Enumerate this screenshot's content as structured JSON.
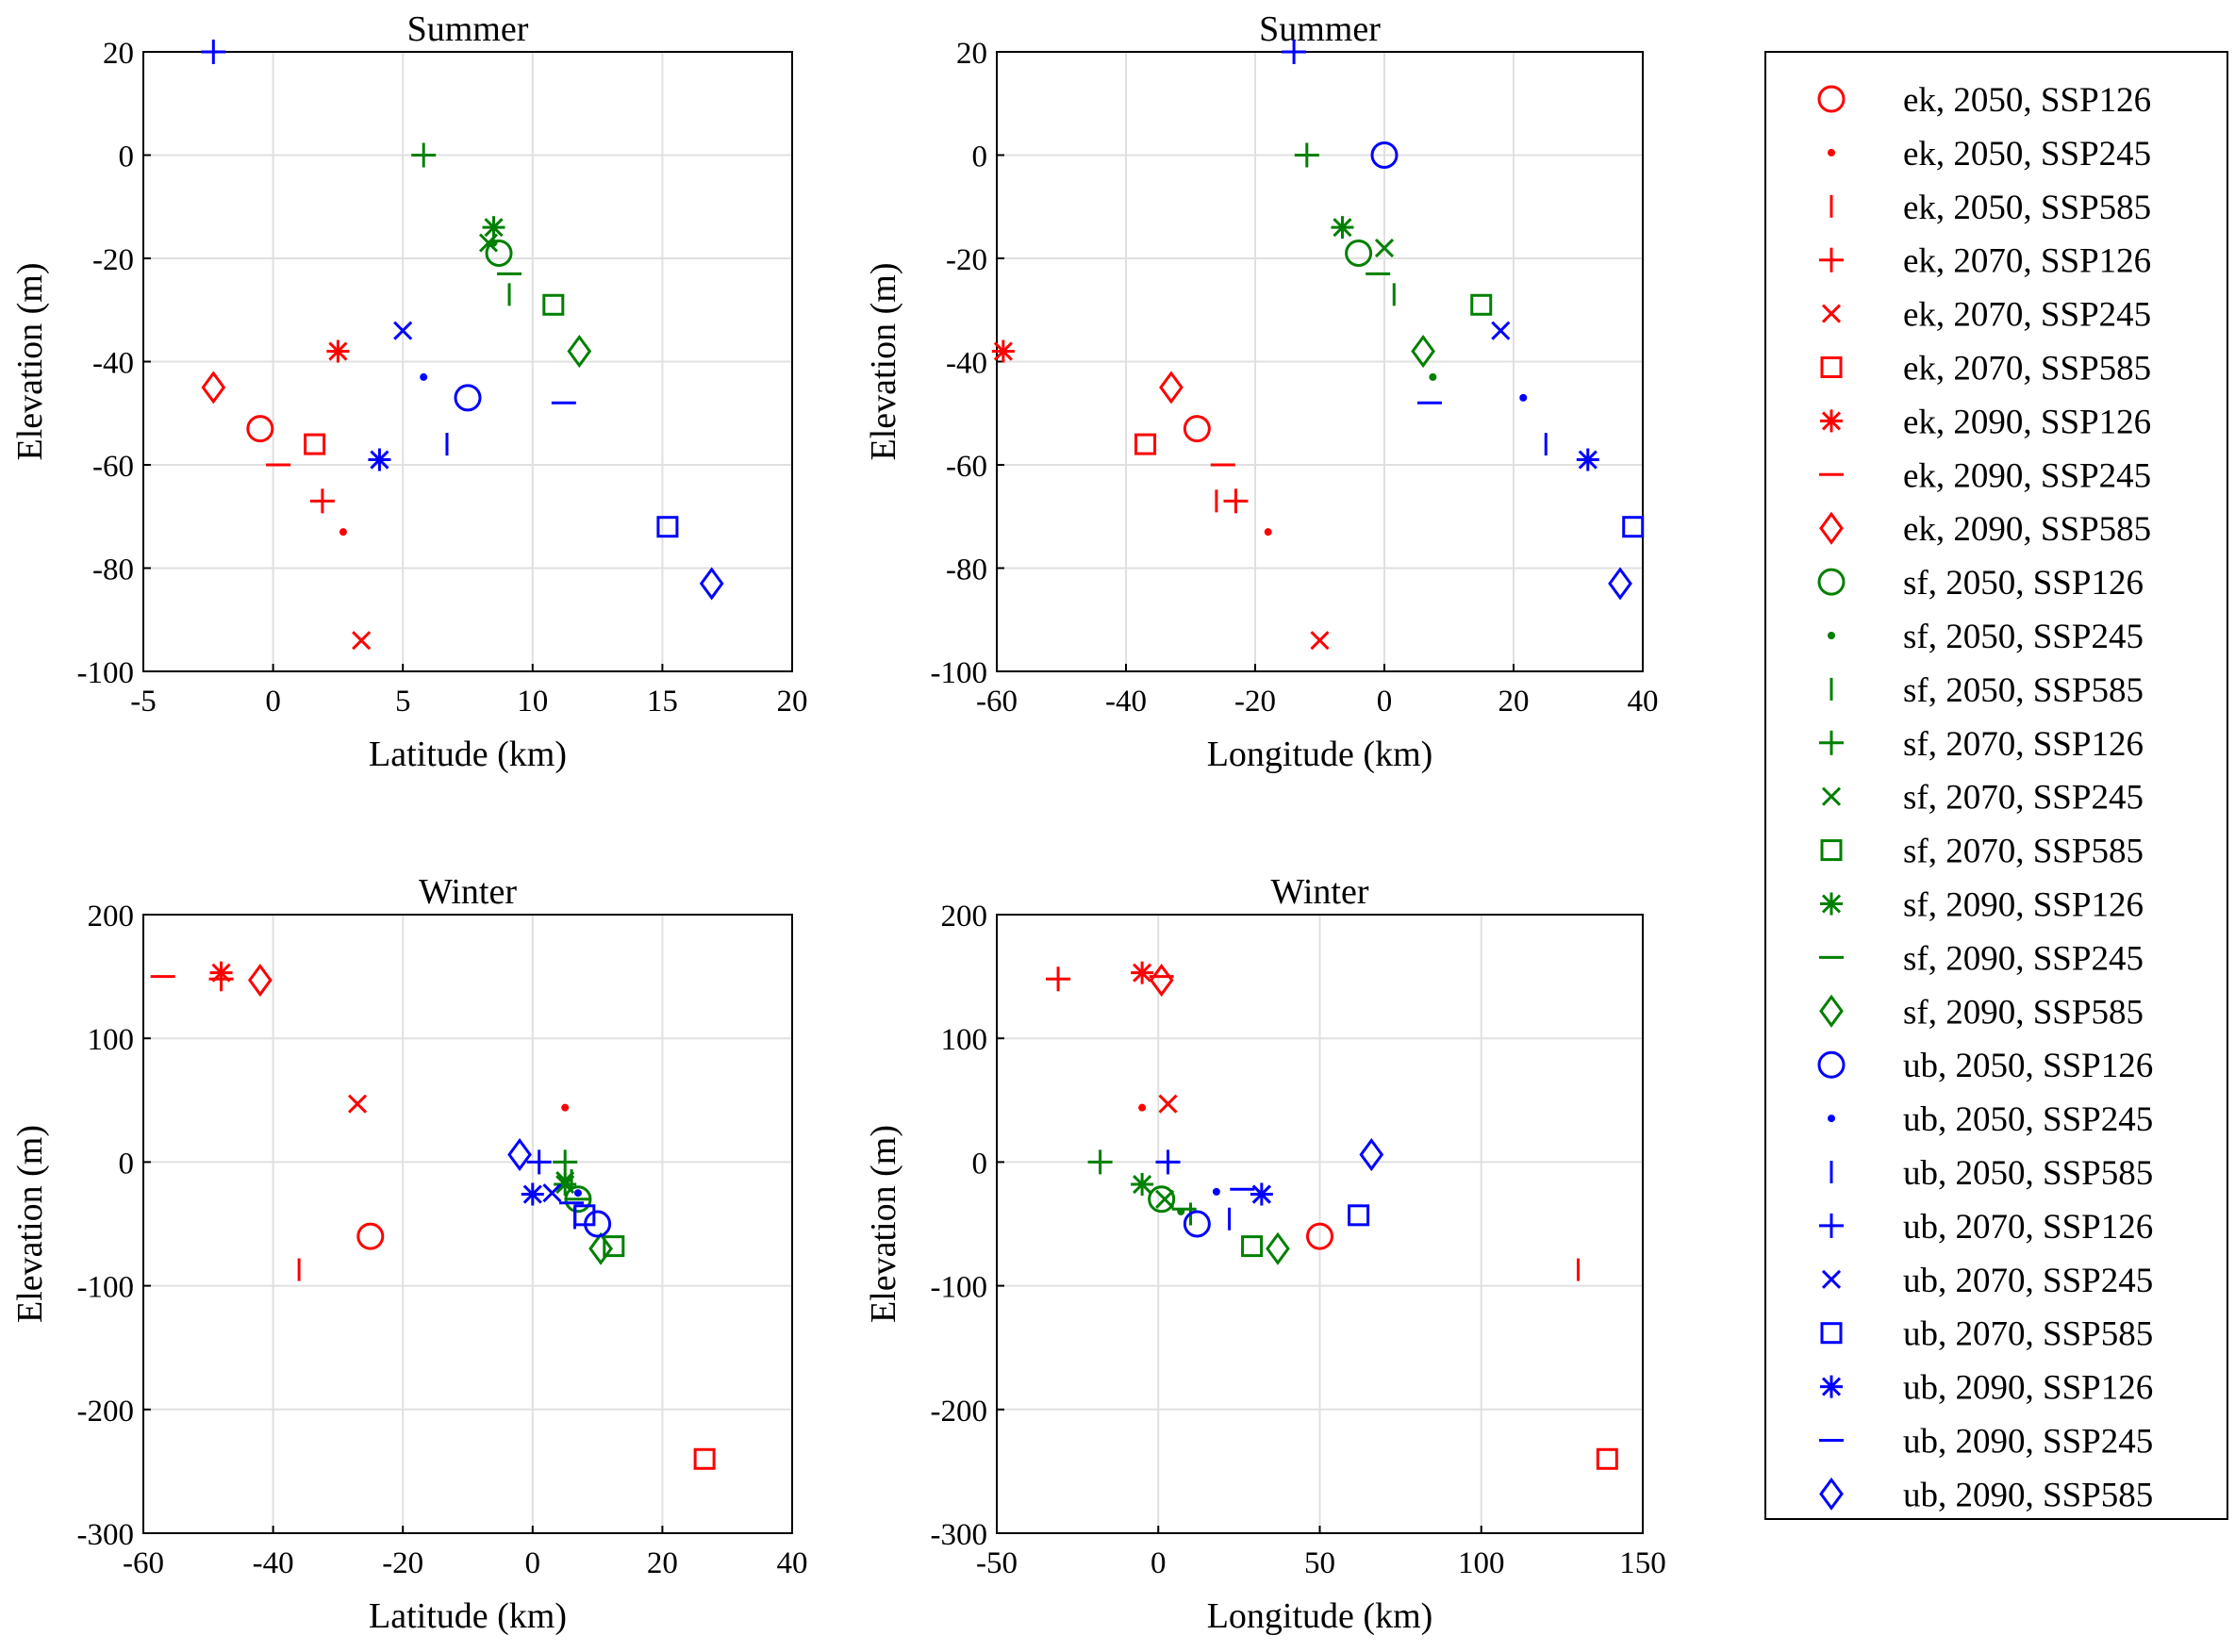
{
  "colors": {
    "ek": "#ff0000",
    "sf": "#008000",
    "ub": "#0000ff"
  },
  "legend": [
    {
      "label": "ek, 2050, SSP126",
      "site": "ek",
      "marker": "circle"
    },
    {
      "label": "ek, 2050, SSP245",
      "site": "ek",
      "marker": "dot"
    },
    {
      "label": "ek, 2050, SSP585",
      "site": "ek",
      "marker": "vline"
    },
    {
      "label": "ek, 2070, SSP126",
      "site": "ek",
      "marker": "plus"
    },
    {
      "label": "ek, 2070, SSP245",
      "site": "ek",
      "marker": "x"
    },
    {
      "label": "ek, 2070, SSP585",
      "site": "ek",
      "marker": "square"
    },
    {
      "label": "ek, 2090, SSP126",
      "site": "ek",
      "marker": "star"
    },
    {
      "label": "ek, 2090, SSP245",
      "site": "ek",
      "marker": "hline"
    },
    {
      "label": "ek, 2090, SSP585",
      "site": "ek",
      "marker": "diamond"
    },
    {
      "label": "sf, 2050, SSP126",
      "site": "sf",
      "marker": "circle"
    },
    {
      "label": "sf, 2050, SSP245",
      "site": "sf",
      "marker": "dot"
    },
    {
      "label": "sf, 2050, SSP585",
      "site": "sf",
      "marker": "vline"
    },
    {
      "label": "sf, 2070, SSP126",
      "site": "sf",
      "marker": "plus"
    },
    {
      "label": "sf, 2070, SSP245",
      "site": "sf",
      "marker": "x"
    },
    {
      "label": "sf, 2070, SSP585",
      "site": "sf",
      "marker": "square"
    },
    {
      "label": "sf, 2090, SSP126",
      "site": "sf",
      "marker": "star"
    },
    {
      "label": "sf, 2090, SSP245",
      "site": "sf",
      "marker": "hline"
    },
    {
      "label": "sf, 2090, SSP585",
      "site": "sf",
      "marker": "diamond"
    },
    {
      "label": "ub, 2050, SSP126",
      "site": "ub",
      "marker": "circle"
    },
    {
      "label": "ub, 2050, SSP245",
      "site": "ub",
      "marker": "dot"
    },
    {
      "label": "ub, 2050, SSP585",
      "site": "ub",
      "marker": "vline"
    },
    {
      "label": "ub, 2070, SSP126",
      "site": "ub",
      "marker": "plus"
    },
    {
      "label": "ub, 2070, SSP245",
      "site": "ub",
      "marker": "x"
    },
    {
      "label": "ub, 2070, SSP585",
      "site": "ub",
      "marker": "square"
    },
    {
      "label": "ub, 2090, SSP126",
      "site": "ub",
      "marker": "star"
    },
    {
      "label": "ub, 2090, SSP245",
      "site": "ub",
      "marker": "hline"
    },
    {
      "label": "ub, 2090, SSP585",
      "site": "ub",
      "marker": "diamond"
    }
  ],
  "chart_data": [
    {
      "type": "scatter",
      "title": "Summer",
      "xlabel": "Latitude (km)",
      "ylabel": "Elevation (m)",
      "xlim": [
        -5,
        20
      ],
      "ylim": [
        -100,
        20
      ],
      "xticks": [
        -5,
        0,
        5,
        10,
        15,
        20
      ],
      "yticks": [
        -100,
        -80,
        -60,
        -40,
        -20,
        0,
        20
      ],
      "grid": true,
      "points": [
        [
          -0.5,
          -53
        ],
        [
          2.7,
          -73
        ],
        [
          6.7,
          -56
        ],
        [
          1.9,
          -67
        ],
        [
          3.4,
          -94
        ],
        [
          1.6,
          -56
        ],
        [
          2.5,
          -38
        ],
        [
          0.2,
          -60
        ],
        [
          -2.3,
          -45
        ],
        [
          8.7,
          -19
        ],
        [
          8.5,
          -17
        ],
        [
          9.1,
          -27
        ],
        [
          5.8,
          0
        ],
        [
          8.3,
          -17
        ],
        [
          10.8,
          -29
        ],
        [
          8.5,
          -14
        ],
        [
          9.1,
          -23
        ],
        [
          11.8,
          -38
        ],
        [
          7.5,
          -47
        ],
        [
          5.8,
          -43
        ],
        [
          6.7,
          -56
        ],
        [
          -2.3,
          20
        ],
        [
          5.0,
          -34
        ],
        [
          15.2,
          -72
        ],
        [
          4.1,
          -59
        ],
        [
          11.2,
          -48
        ],
        [
          16.9,
          -83
        ]
      ]
    },
    {
      "type": "scatter",
      "title": "Summer",
      "xlabel": "Longitude (km)",
      "ylabel": "Elevation (m)",
      "xlim": [
        -60,
        40
      ],
      "ylim": [
        -100,
        20
      ],
      "xticks": [
        -60,
        -40,
        -20,
        0,
        20,
        40
      ],
      "yticks": [
        -100,
        -80,
        -60,
        -40,
        -20,
        0,
        20
      ],
      "grid": true,
      "points": [
        [
          -29,
          -53
        ],
        [
          -18,
          -73
        ],
        [
          -26,
          -67
        ],
        [
          -23,
          -67
        ],
        [
          -10,
          -94
        ],
        [
          -37,
          -56
        ],
        [
          -59,
          -38
        ],
        [
          -25,
          -60
        ],
        [
          -33,
          -45
        ],
        [
          -4,
          -19
        ],
        [
          7.5,
          -43
        ],
        [
          1.5,
          -27
        ],
        [
          -12,
          0
        ],
        [
          0,
          -18
        ],
        [
          15,
          -29
        ],
        [
          -6.5,
          -14
        ],
        [
          -1,
          -23
        ],
        [
          6,
          -38
        ],
        [
          0,
          0
        ],
        [
          21.5,
          -47
        ],
        [
          25,
          -56
        ],
        [
          -14,
          20
        ],
        [
          18,
          -34
        ],
        [
          38.5,
          -72
        ],
        [
          31.5,
          -59
        ],
        [
          7,
          -48
        ],
        [
          36.5,
          -83
        ]
      ]
    },
    {
      "type": "scatter",
      "title": "Winter",
      "xlabel": "Latitude (km)",
      "ylabel": "Elevation (m)",
      "xlim": [
        -60,
        40
      ],
      "ylim": [
        -300,
        200
      ],
      "xticks": [
        -60,
        -40,
        -20,
        0,
        20,
        40
      ],
      "yticks": [
        -300,
        -200,
        -100,
        0,
        100,
        200
      ],
      "grid": true,
      "points": [
        [
          -25,
          -60
        ],
        [
          5,
          44
        ],
        [
          -36,
          -87
        ],
        [
          -48,
          148
        ],
        [
          -27,
          47
        ],
        [
          26.5,
          -240
        ],
        [
          -48,
          153
        ],
        [
          -57,
          150
        ],
        [
          -42,
          147
        ],
        [
          7,
          -30
        ],
        [
          5,
          -18
        ],
        [
          6,
          -15
        ],
        [
          5,
          0
        ],
        [
          5,
          -15
        ],
        [
          12.5,
          -68
        ],
        [
          5,
          -18
        ],
        [
          7,
          -30
        ],
        [
          10.5,
          -70
        ],
        [
          10,
          -50
        ],
        [
          7,
          -25
        ],
        [
          6.5,
          -45
        ],
        [
          1,
          0
        ],
        [
          3,
          -25
        ],
        [
          8,
          -43
        ],
        [
          0,
          -26
        ],
        [
          6,
          -33
        ],
        [
          -2,
          6
        ]
      ]
    },
    {
      "type": "scatter",
      "title": "Winter",
      "xlabel": "Longitude (km)",
      "ylabel": "Elevation (m)",
      "xlim": [
        -50,
        150
      ],
      "ylim": [
        -300,
        200
      ],
      "xticks": [
        -50,
        0,
        50,
        100,
        150
      ],
      "yticks": [
        -300,
        -200,
        -100,
        0,
        100,
        200
      ],
      "grid": true,
      "points": [
        [
          50,
          -60
        ],
        [
          -5,
          44
        ],
        [
          130,
          -87
        ],
        [
          -31,
          148
        ],
        [
          3,
          47
        ],
        [
          139,
          -240
        ],
        [
          -5,
          153
        ],
        [
          1,
          150
        ],
        [
          1,
          147
        ],
        [
          1,
          -30
        ],
        [
          7,
          -40
        ],
        [
          10,
          -42
        ],
        [
          -18,
          0
        ],
        [
          2,
          -30
        ],
        [
          29,
          -68
        ],
        [
          -5,
          -18
        ],
        [
          8,
          -38
        ],
        [
          37,
          -70
        ],
        [
          12,
          -50
        ],
        [
          18,
          -24
        ],
        [
          22,
          -46
        ],
        [
          3,
          0
        ],
        [
          32,
          -26
        ],
        [
          62,
          -43
        ],
        [
          32,
          -26
        ],
        [
          26,
          -22
        ],
        [
          66,
          6
        ]
      ]
    }
  ]
}
